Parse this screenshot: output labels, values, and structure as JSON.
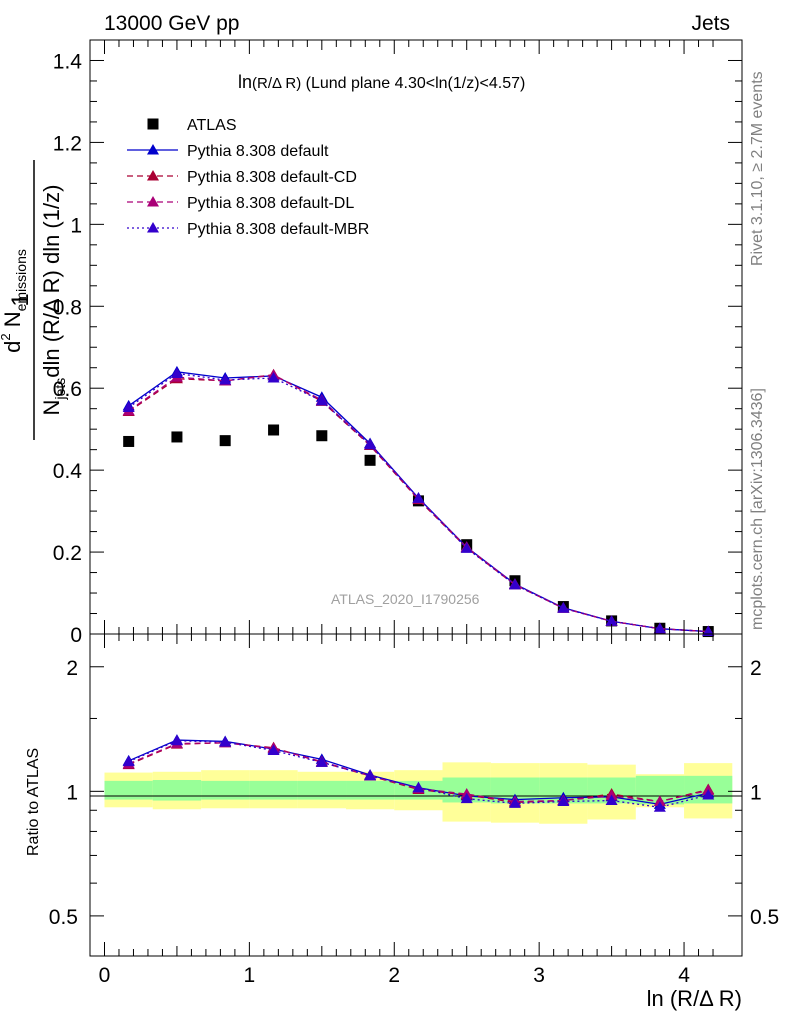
{
  "header": {
    "energy_label": "13000 GeV pp",
    "process_label": "Jets"
  },
  "side_labels": {
    "rivet": "Rivet 3.1.10, ≥ 2.7M events",
    "mcplots": "mcplots.cern.ch [arXiv:1306.3436]"
  },
  "watermark": "ATLAS_2020_I1790256",
  "chart_data": [
    {
      "type": "scatter",
      "title_main": "ln",
      "title_paren": "(R/Δ R)",
      "title_rest": " (Lund plane 4.30<ln(1/z)<4.57)",
      "ylabel": "1/N_jets d²N_emissions / dln(R/ΔR) dln(1/z)",
      "ylabel_one": "1",
      "ylabel_d2": "d",
      "ylabel_sup2": "2",
      "ylabel_N": "N",
      "ylabel_emissions": "emissions",
      "ylabel_Nden": "N",
      "ylabel_jets": "jets",
      "ylabel_rest": "dln (R/Δ R) dln (1/z)",
      "xlim": [
        -0.1,
        4.4
      ],
      "ylim": [
        0,
        1.45
      ],
      "yticks": [
        0,
        0.2,
        0.4,
        0.6,
        0.8,
        1,
        1.2,
        1.4
      ],
      "ytick_labels": [
        "0",
        "0.2",
        "0.4",
        "0.6",
        "0.8",
        "1",
        "1.2",
        "1.4"
      ],
      "x": [
        0.167,
        0.5,
        0.833,
        1.167,
        1.5,
        1.833,
        2.167,
        2.5,
        2.833,
        3.167,
        3.5,
        3.833,
        4.167
      ],
      "series": [
        {
          "name": "ATLAS",
          "color": "#000000",
          "marker": "square",
          "line": "none",
          "values": [
            0.47,
            0.481,
            0.472,
            0.498,
            0.484,
            0.424,
            0.325,
            0.218,
            0.13,
            0.067,
            0.032,
            0.014,
            0.006
          ]
        },
        {
          "name": "Pythia 8.308 default",
          "color": "#0000cc",
          "marker": "triangle",
          "line": "solid",
          "values": [
            0.557,
            0.64,
            0.625,
            0.63,
            0.578,
            0.465,
            0.332,
            0.212,
            0.122,
            0.064,
            0.031,
            0.013,
            0.006
          ]
        },
        {
          "name": "Pythia 8.308 default-CD",
          "color": "#aa0033",
          "marker": "triangle",
          "line": "dashed",
          "values": [
            0.543,
            0.623,
            0.618,
            0.633,
            0.568,
            0.46,
            0.328,
            0.21,
            0.12,
            0.063,
            0.031,
            0.013,
            0.006
          ]
        },
        {
          "name": "Pythia 8.308 default-DL",
          "color": "#aa0077",
          "marker": "triangle",
          "line": "dashed",
          "values": [
            0.545,
            0.627,
            0.618,
            0.632,
            0.571,
            0.462,
            0.33,
            0.212,
            0.121,
            0.063,
            0.031,
            0.013,
            0.006
          ]
        },
        {
          "name": "Pythia 8.308 default-MBR",
          "color": "#3300cc",
          "marker": "triangle",
          "line": "dotted",
          "values": [
            0.553,
            0.636,
            0.62,
            0.625,
            0.569,
            0.462,
            0.331,
            0.209,
            0.12,
            0.063,
            0.031,
            0.013,
            0.006
          ]
        }
      ]
    },
    {
      "type": "scatter",
      "xlabel": "ln (R/Δ R)",
      "ylabel": "Ratio to ATLAS",
      "xlim": [
        -0.1,
        4.4
      ],
      "ylim_log": [
        0.4,
        2.4
      ],
      "yticks": [
        0.5,
        1,
        2
      ],
      "ytick_labels": [
        "0.5",
        "1",
        "2"
      ],
      "xticks": [
        0,
        1,
        2,
        3,
        4
      ],
      "xtick_labels": [
        "0",
        "1",
        "2",
        "3",
        "4"
      ],
      "bin_edges": [
        0.0,
        0.333,
        0.667,
        1.0,
        1.333,
        1.667,
        2.0,
        2.333,
        2.667,
        3.0,
        3.333,
        3.667,
        4.0,
        4.333
      ],
      "band_inner": {
        "color": "#98ff98",
        "lo": [
          0.955,
          0.95,
          0.955,
          0.955,
          0.955,
          0.955,
          0.955,
          0.94,
          0.935,
          0.935,
          0.935,
          0.93,
          0.935
        ],
        "hi": [
          1.06,
          1.065,
          1.06,
          1.06,
          1.06,
          1.06,
          1.06,
          1.08,
          1.08,
          1.08,
          1.08,
          1.09,
          1.09
        ]
      },
      "band_outer": {
        "color": "#ffff99",
        "lo": [
          0.915,
          0.905,
          0.91,
          0.91,
          0.91,
          0.905,
          0.9,
          0.845,
          0.84,
          0.835,
          0.855,
          0.915,
          0.86
        ],
        "hi": [
          1.11,
          1.115,
          1.125,
          1.125,
          1.115,
          1.115,
          1.125,
          1.175,
          1.17,
          1.17,
          1.16,
          1.1,
          1.17
        ]
      },
      "series": [
        {
          "name": "Pythia 8.308 default",
          "color": "#0000cc",
          "line": "solid",
          "values": [
            1.185,
            1.33,
            1.32,
            1.265,
            1.195,
            1.095,
            1.02,
            0.975,
            0.955,
            0.965,
            0.97,
            0.93,
            0.99
          ]
        },
        {
          "name": "Pythia 8.308 default-CD",
          "color": "#aa0033",
          "line": "dashed",
          "values": [
            1.16,
            1.3,
            1.31,
            1.275,
            1.175,
            1.09,
            1.01,
            0.98,
            0.94,
            0.95,
            0.985,
            0.945,
            1.01
          ]
        },
        {
          "name": "Pythia 8.308 default-DL",
          "color": "#aa0077",
          "line": "dashed",
          "values": [
            1.165,
            1.305,
            1.31,
            1.27,
            1.18,
            1.09,
            1.015,
            0.985,
            0.945,
            0.95,
            0.975,
            0.945,
            1.005
          ]
        },
        {
          "name": "Pythia 8.308 default-MBR",
          "color": "#3300cc",
          "line": "dotted",
          "values": [
            1.18,
            1.325,
            1.315,
            1.255,
            1.175,
            1.09,
            1.02,
            0.96,
            0.935,
            0.945,
            0.95,
            0.915,
            0.98
          ]
        }
      ]
    }
  ]
}
